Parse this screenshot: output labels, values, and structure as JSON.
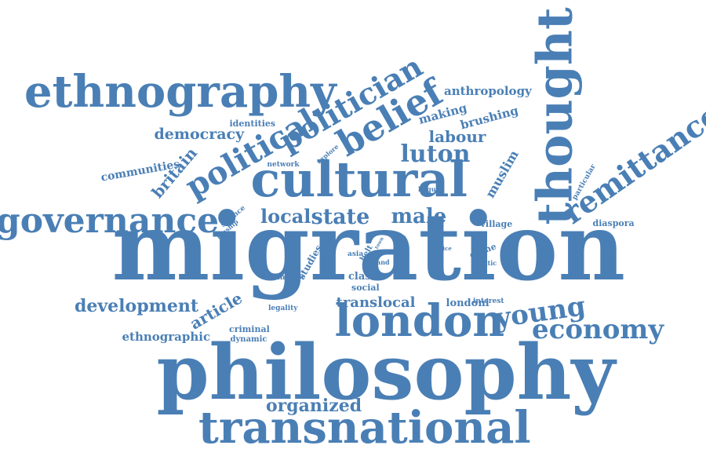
{
  "words": [
    {
      "text": "migration",
      "color": "#4a7fb5"
    },
    {
      "text": "philosophy",
      "color": "#4a7fb5"
    },
    {
      "text": "transnational",
      "color": "#4a7fb5"
    },
    {
      "text": "london",
      "color": "#4a7fb5"
    },
    {
      "text": "cultural",
      "color": "#4a7fb5"
    },
    {
      "text": "thought",
      "color": "#4a7fb5"
    },
    {
      "text": "ethnography",
      "color": "#4a7fb5"
    },
    {
      "text": "governance",
      "color": "#4a7fb5"
    },
    {
      "text": "political",
      "color": "#4a7fb5"
    },
    {
      "text": "politician",
      "color": "#4a7fb5"
    },
    {
      "text": "belief",
      "color": "#4a7fb5"
    },
    {
      "text": "remittance",
      "color": "#4a7fb5"
    },
    {
      "text": "economy",
      "color": "#4a7fb5"
    },
    {
      "text": "young",
      "color": "#4a7fb5"
    },
    {
      "text": "state",
      "color": "#4a7fb5"
    },
    {
      "text": "local",
      "color": "#4a7fb5"
    },
    {
      "text": "male",
      "color": "#4a7fb5"
    },
    {
      "text": "luton",
      "color": "#4a7fb5"
    },
    {
      "text": "labour",
      "color": "#4a7fb5"
    },
    {
      "text": "development",
      "color": "#4a7fb5"
    },
    {
      "text": "organized",
      "color": "#4a7fb5"
    },
    {
      "text": "article",
      "color": "#4a7fb5"
    },
    {
      "text": "translocal",
      "color": "#4a7fb5"
    },
    {
      "text": "democracy",
      "color": "#4a7fb5"
    },
    {
      "text": "anthropology",
      "color": "#4a7fb5"
    },
    {
      "text": "making",
      "color": "#4a7fb5"
    },
    {
      "text": "brushing",
      "color": "#4a7fb5"
    },
    {
      "text": "britain",
      "color": "#4a7fb5"
    },
    {
      "text": "communities",
      "color": "#4a7fb5"
    },
    {
      "text": "muslim",
      "color": "#4a7fb5"
    },
    {
      "text": "ethnographic",
      "color": "#4a7fb5"
    },
    {
      "text": "londoni",
      "color": "#4a7fb5"
    },
    {
      "text": "identities",
      "color": "#4a7fb5"
    },
    {
      "text": "network",
      "color": "#4a7fb5"
    },
    {
      "text": "explore",
      "color": "#4a7fb5"
    },
    {
      "text": "hoque",
      "color": "#4a7fb5"
    },
    {
      "text": "particular",
      "color": "#4a7fb5"
    },
    {
      "text": "diaspora",
      "color": "#4a7fb5"
    },
    {
      "text": "village",
      "color": "#4a7fb5"
    },
    {
      "text": "science",
      "color": "#4a7fb5"
    },
    {
      "text": "kinship",
      "color": "#4a7fb5"
    },
    {
      "text": "studies",
      "color": "#4a7fb5"
    },
    {
      "text": "asia",
      "color": "#4a7fb5"
    },
    {
      "text": "belt",
      "color": "#4a7fb5"
    },
    {
      "text": "land",
      "color": "#4a7fb5"
    },
    {
      "text": "town",
      "color": "#4a7fb5"
    },
    {
      "text": "power",
      "color": "#4a7fb5"
    },
    {
      "text": "office",
      "color": "#4a7fb5"
    },
    {
      "text": "crime",
      "color": "#4a7fb5"
    },
    {
      "text": "politic",
      "color": "#4a7fb5"
    },
    {
      "text": "class",
      "color": "#4a7fb5"
    },
    {
      "text": "social",
      "color": "#4a7fb5"
    },
    {
      "text": "impact",
      "color": "#4a7fb5"
    },
    {
      "text": "interest",
      "color": "#4a7fb5"
    },
    {
      "text": "legality",
      "color": "#4a7fb5"
    },
    {
      "text": "criminal",
      "color": "#4a7fb5"
    },
    {
      "text": "dynamic",
      "color": "#4a7fb5"
    }
  ]
}
